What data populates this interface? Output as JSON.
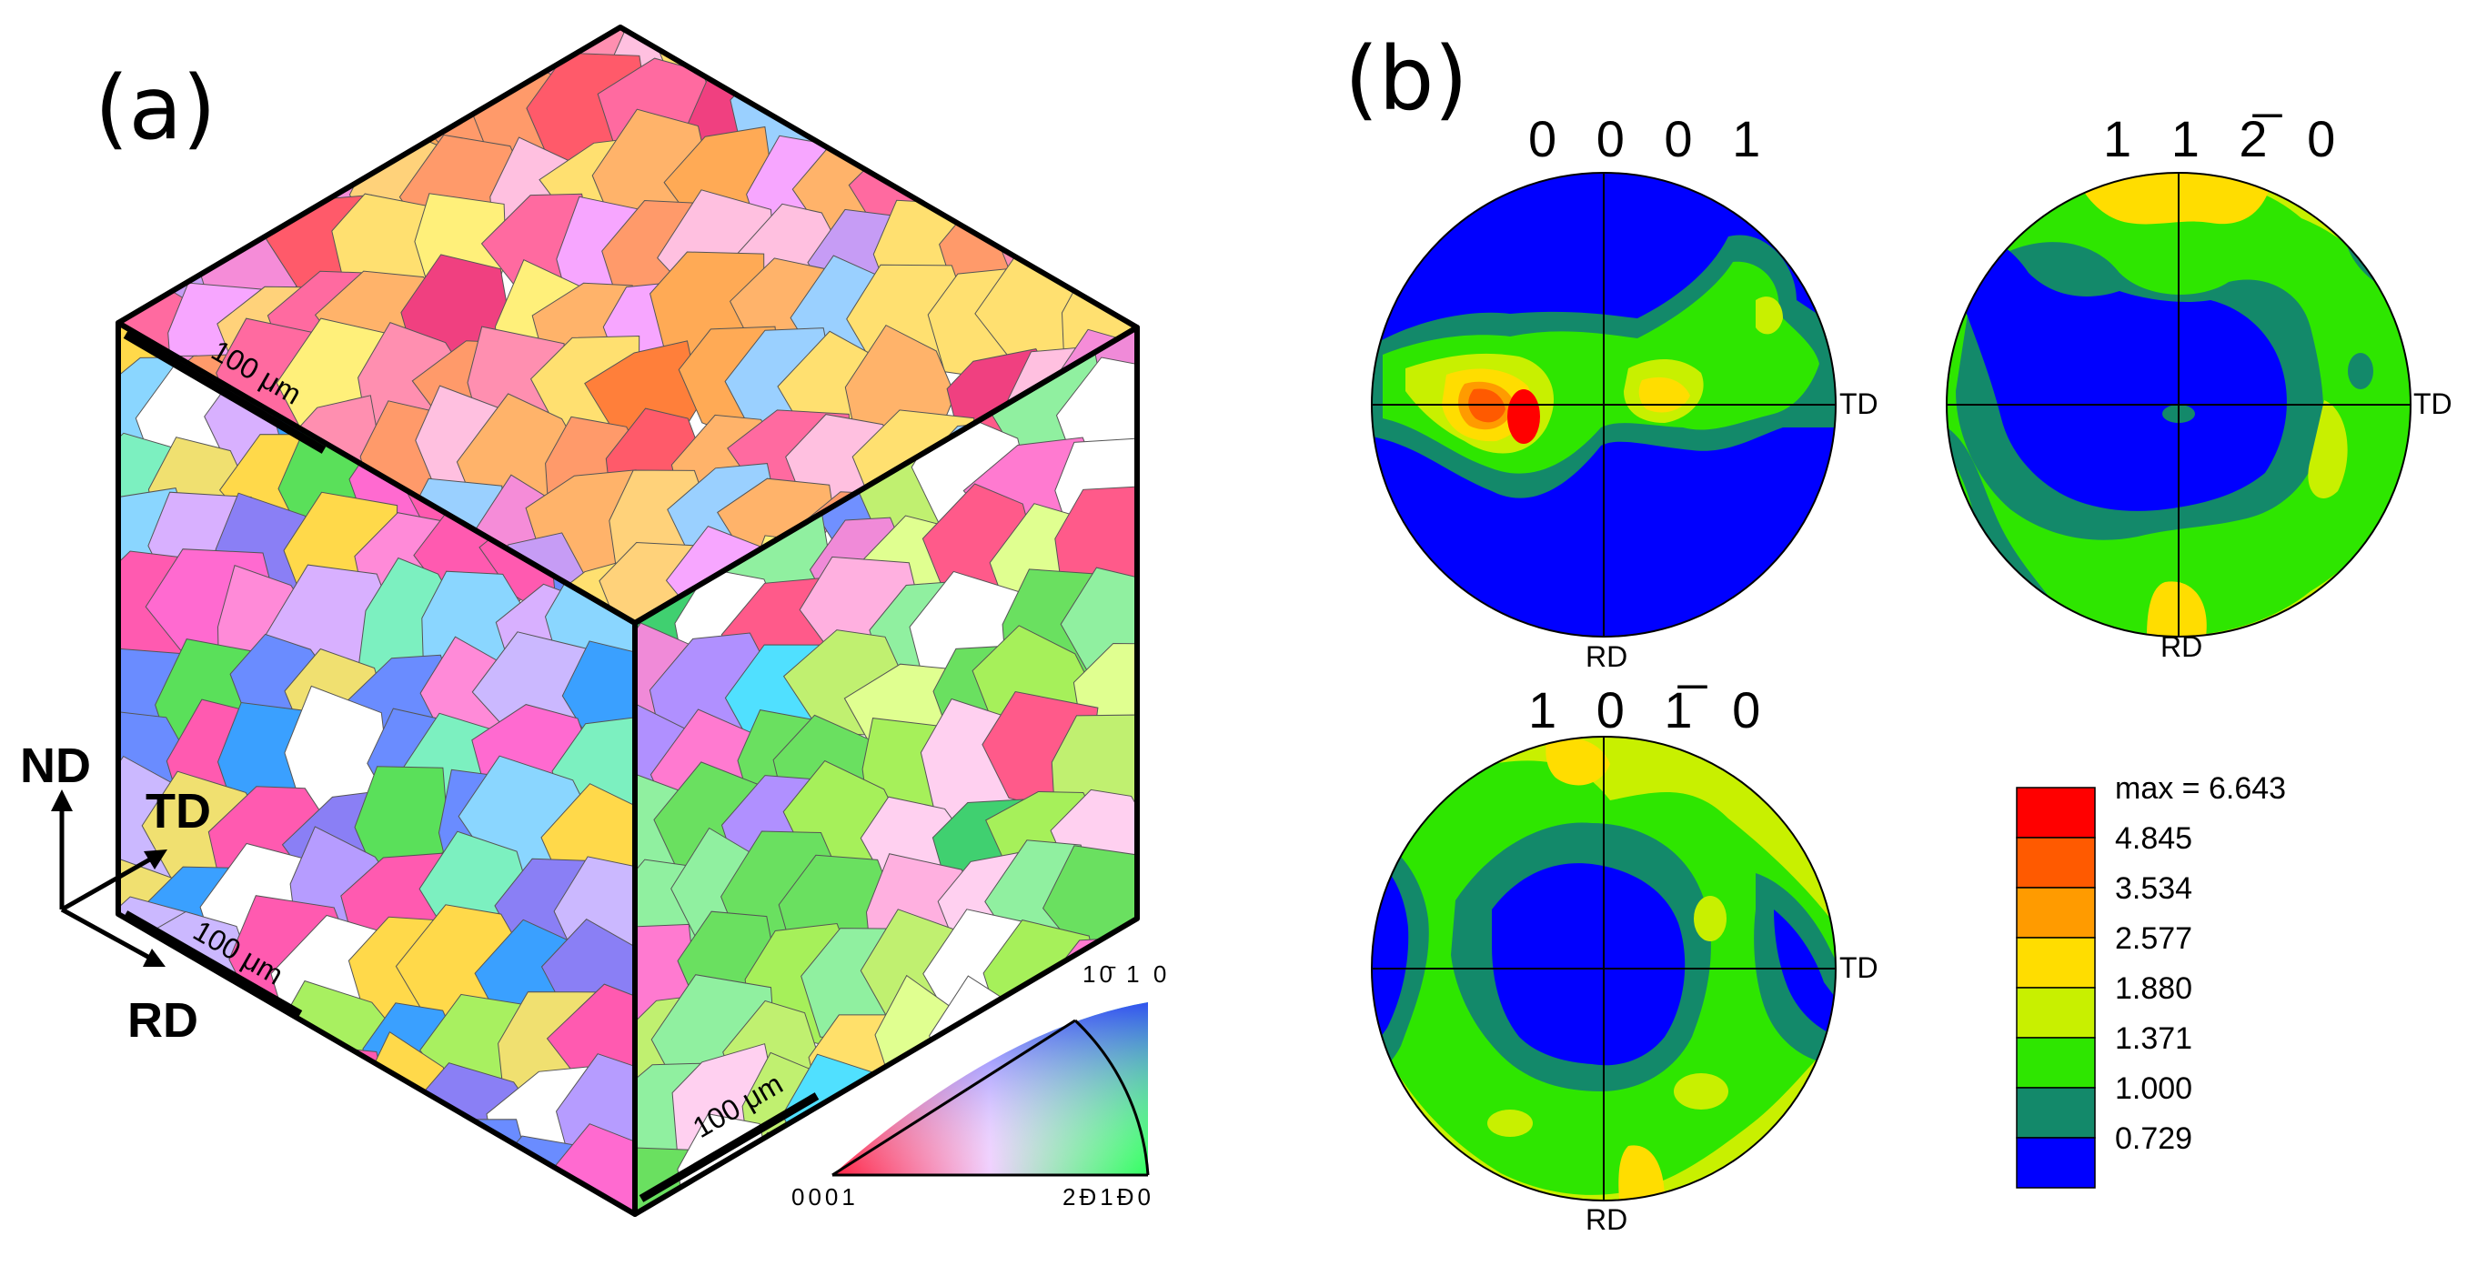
{
  "panels": {
    "a": {
      "label": "(a)",
      "axes": {
        "nd": "ND",
        "td": "TD",
        "rd": "RD"
      },
      "scale_bar_text": "100 μm",
      "ipf_key": {
        "top": "10̄ 1 0",
        "left": "0001",
        "right": "2Đ1Đ0"
      }
    },
    "b": {
      "label": "(b)",
      "pole_figures": [
        {
          "title": "0 0 0 1",
          "td": "TD",
          "rd": "RD"
        },
        {
          "title": "1 1 2̅ 0",
          "td": "TD",
          "rd": "RD"
        },
        {
          "title": "1 0 1̅ 0",
          "td": "TD",
          "rd": "RD"
        }
      ],
      "legend": {
        "entries": [
          {
            "label": "max = 6.643",
            "color": "#ff0000"
          },
          {
            "label": "4.845",
            "color": "#ff5a00"
          },
          {
            "label": "3.534",
            "color": "#ff9b00"
          },
          {
            "label": "2.577",
            "color": "#ffdd00"
          },
          {
            "label": "1.880",
            "color": "#c8f000"
          },
          {
            "label": "1.371",
            "color": "#2ee600"
          },
          {
            "label": "1.000",
            "color": "#13896a"
          },
          {
            "label": "0.729",
            "color": "#0000ff"
          }
        ]
      }
    }
  }
}
